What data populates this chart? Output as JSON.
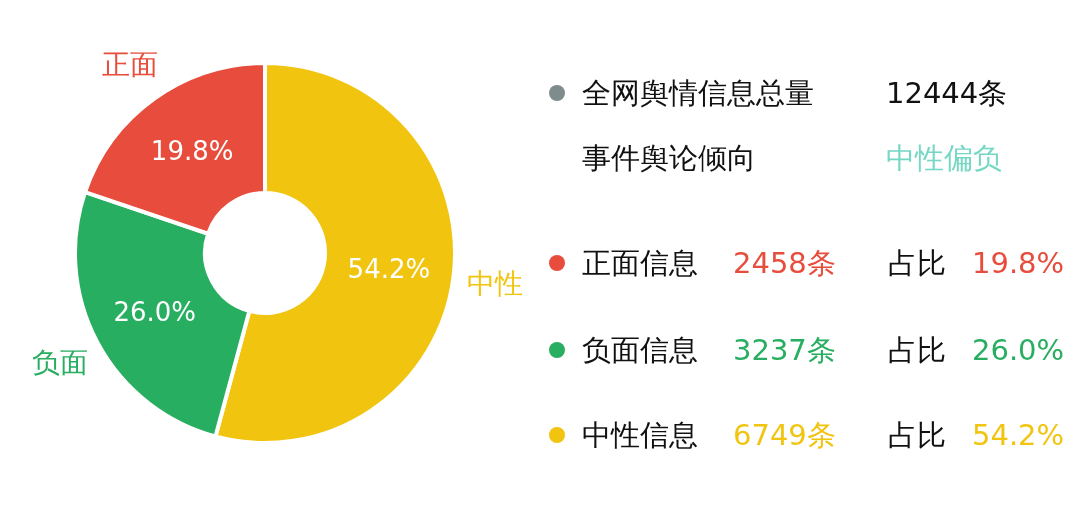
{
  "chart_data": [
    {
      "type": "donut",
      "categories": [
        "中性",
        "负面",
        "正面"
      ],
      "values": [
        54.2,
        26.0,
        19.8
      ],
      "colors": [
        "#f1c40f",
        "#27ae60",
        "#e74c3c"
      ],
      "value_labels": [
        "54.2%",
        "26.0%",
        "19.8%"
      ]
    },
    {
      "type": "other",
      "annotations": [
        "全网舆情信息总量",
        "12444条",
        "事件舆论倾向",
        "中性偏负",
        "正面信息",
        "2458条",
        "占比",
        "19.8%",
        "负面信息",
        "3237条",
        "占比",
        "26.0%",
        "中性信息",
        "6749条",
        "占比",
        "54.2%"
      ]
    }
  ]
}
